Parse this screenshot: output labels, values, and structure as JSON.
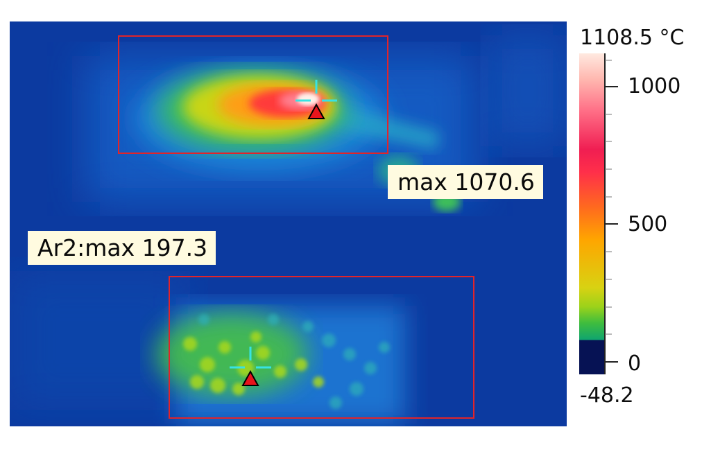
{
  "thermal_image": {
    "colormap": "iron",
    "region_top": {
      "label": "max 1070.6",
      "highlight_color": "#e1242a"
    },
    "region_bottom": {
      "label": "Ar2:max 197.3",
      "highlight_color": "#e1242a"
    },
    "marker_color": "#e8141c",
    "crosshair_color": "#38e3e3"
  },
  "scale": {
    "unit_max_label": "1108.5 °C",
    "min_label": "-48.2",
    "ticks": [
      "1000",
      "500",
      "0"
    ]
  }
}
